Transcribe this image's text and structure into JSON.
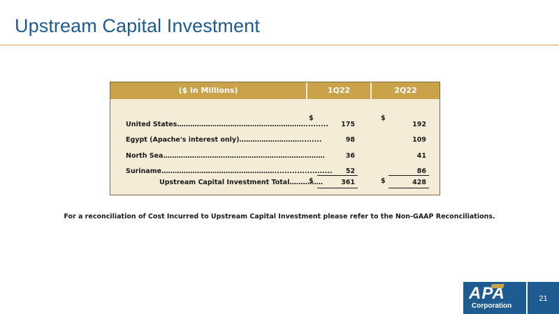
{
  "title": "Upstream Capital Investment",
  "table": {
    "headers": [
      "($ in Millions)",
      "1Q22",
      "2Q22"
    ],
    "rows": [
      {
        "label": "United States…………………………………………………..........",
        "q1_dollar": "$",
        "q1": "175",
        "q2_dollar": "$",
        "q2": "192"
      },
      {
        "label": "Egypt (Apache's interest only)……………………….........",
        "q1": "98",
        "q2": "109"
      },
      {
        "label": "North Sea……………………………………………………………….",
        "q1": "36",
        "q2": "41"
      },
      {
        "label": "Suriname…………………………………………….......................",
        "q1": "52",
        "q2": "86"
      }
    ],
    "total": {
      "label": "Upstream Capital Investment Total……………",
      "q1_dollar": "$",
      "q1": "361",
      "q2_dollar": "$",
      "q2": "428"
    }
  },
  "footnote": "For a reconciliation of Cost Incurred to Upstream Capital Investment please refer to the Non-GAAP Reconciliations.",
  "logo": {
    "main": "APA",
    "sub": "Corporation"
  },
  "page_number": "21",
  "colors": {
    "title": "#1e5b91",
    "accent_gold": "#c9a24a",
    "table_bg": "#f5ecd8",
    "brand_blue": "#1e5b91"
  }
}
